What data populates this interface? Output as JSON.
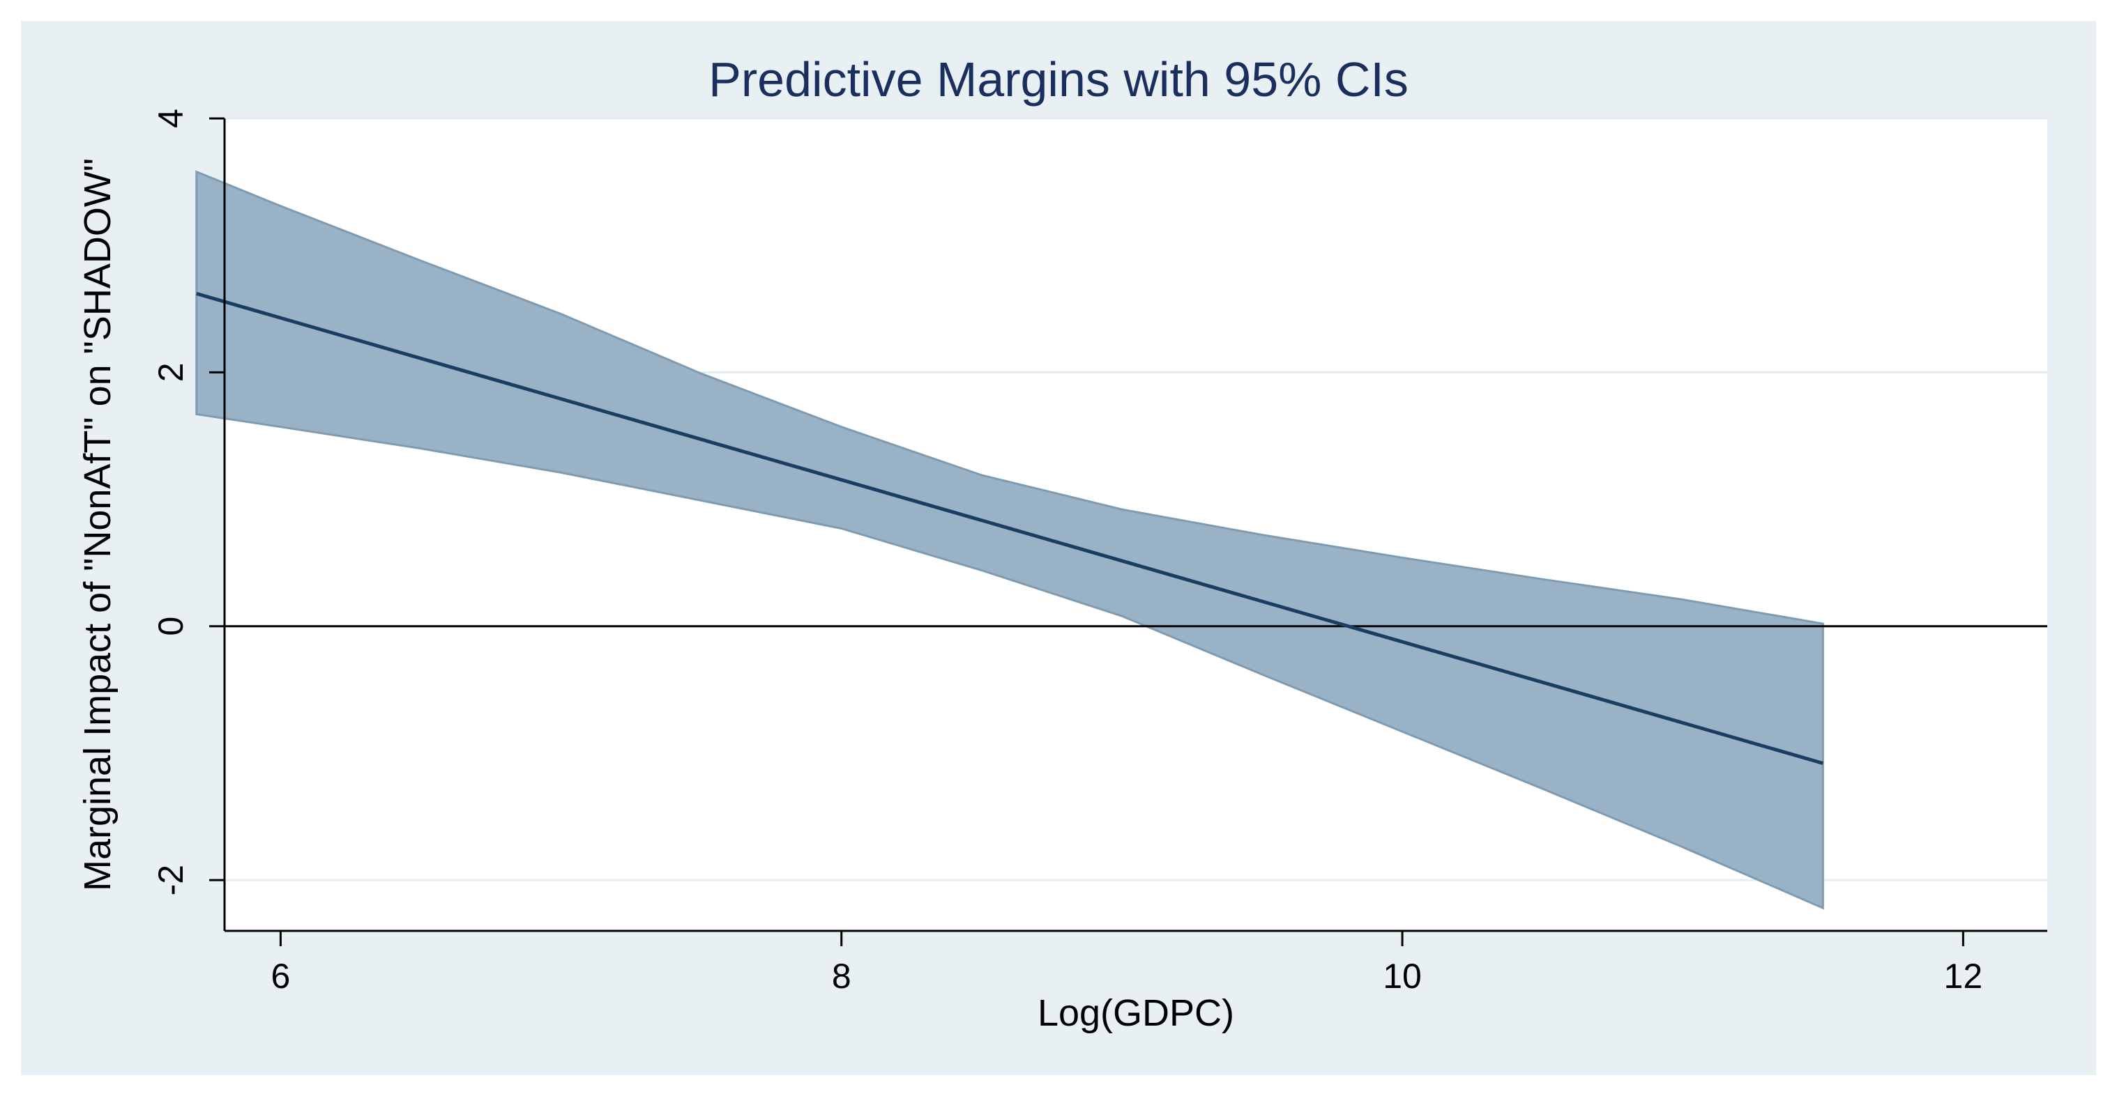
{
  "chart_data": {
    "type": "line",
    "title": "Predictive Margins with 95% CIs",
    "xlabel": "Log(GDPC)",
    "ylabel": "Marginal Impact of \"NonAfT\" on \"SHADOW\"",
    "xlim": [
      5.8,
      12.3
    ],
    "ylim": [
      -2.4,
      4.0
    ],
    "x_ticks": [
      6,
      8,
      10,
      12
    ],
    "y_ticks": [
      -2,
      0,
      2,
      4
    ],
    "x_tick_labels": [
      "6",
      "8",
      "10",
      "12"
    ],
    "y_tick_labels": [
      "-2",
      "0",
      "2",
      "4"
    ],
    "grid": true,
    "reference_line_y": 0,
    "series": [
      {
        "name": "Predictive margin",
        "x": [
          5.7,
          11.5
        ],
        "values": [
          2.62,
          -1.08
        ]
      },
      {
        "name": "95% CI upper",
        "x": [
          5.7,
          6.0,
          6.5,
          7.0,
          7.5,
          8.0,
          8.5,
          9.0,
          9.5,
          10.0,
          10.5,
          11.0,
          11.5
        ],
        "values": [
          3.58,
          3.31,
          2.88,
          2.46,
          1.99,
          1.57,
          1.19,
          0.92,
          0.72,
          0.54,
          0.37,
          0.21,
          0.02
        ]
      },
      {
        "name": "95% CI lower",
        "x": [
          5.7,
          6.0,
          6.5,
          7.0,
          7.5,
          8.0,
          8.5,
          9.0,
          9.5,
          10.0,
          10.5,
          11.0,
          11.5
        ],
        "values": [
          1.67,
          1.57,
          1.4,
          1.21,
          0.99,
          0.77,
          0.44,
          0.08,
          -0.38,
          -0.83,
          -1.28,
          -1.74,
          -2.22
        ]
      }
    ],
    "colors": {
      "band": "#9ab2c5",
      "band_edge": "#7f9bb2",
      "line": "#1a3d63",
      "background": "#e8f0f3",
      "plot_bg": "#ffffff",
      "grid": "#e3eef2",
      "zero_line": "#000000",
      "title": "#1a2f5e"
    }
  }
}
